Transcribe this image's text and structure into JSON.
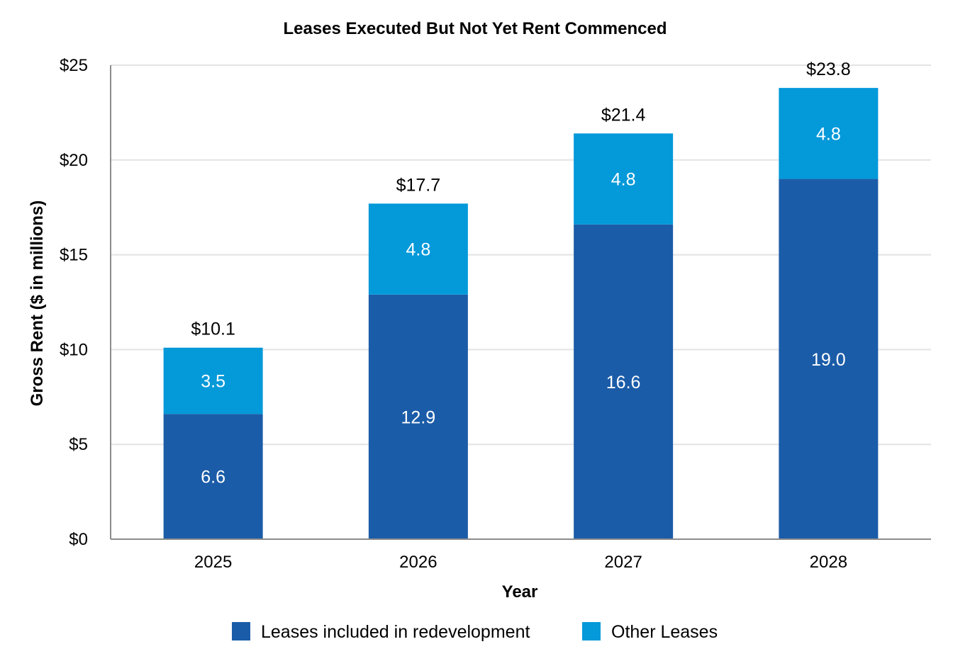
{
  "chart_data": {
    "type": "bar",
    "stacked": true,
    "title": "Leases Executed But Not Yet Rent Commenced",
    "xlabel": "Year",
    "ylabel": "Gross Rent ($ in millions)",
    "categories": [
      "2025",
      "2026",
      "2027",
      "2028"
    ],
    "series": [
      {
        "name": "Leases included in redevelopment",
        "color": "#1b5ca8",
        "values": [
          6.6,
          12.9,
          16.6,
          19.0
        ],
        "labels": [
          "6.6",
          "12.9",
          "16.6",
          "19.0"
        ]
      },
      {
        "name": "Other Leases",
        "color": "#0499d9",
        "values": [
          3.5,
          4.8,
          4.8,
          4.8
        ],
        "labels": [
          "3.5",
          "4.8",
          "4.8",
          "4.8"
        ]
      }
    ],
    "totals": [
      10.1,
      17.7,
      21.4,
      23.8
    ],
    "total_labels": [
      "$10.1",
      "$17.7",
      "$21.4",
      "$23.8"
    ],
    "ylim": [
      0,
      25
    ],
    "yticks": [
      0,
      5,
      10,
      15,
      20,
      25
    ],
    "ytick_labels": [
      "$0",
      "$5",
      "$10",
      "$15",
      "$20",
      "$25"
    ],
    "grid": true,
    "legend": "bottom-center"
  }
}
